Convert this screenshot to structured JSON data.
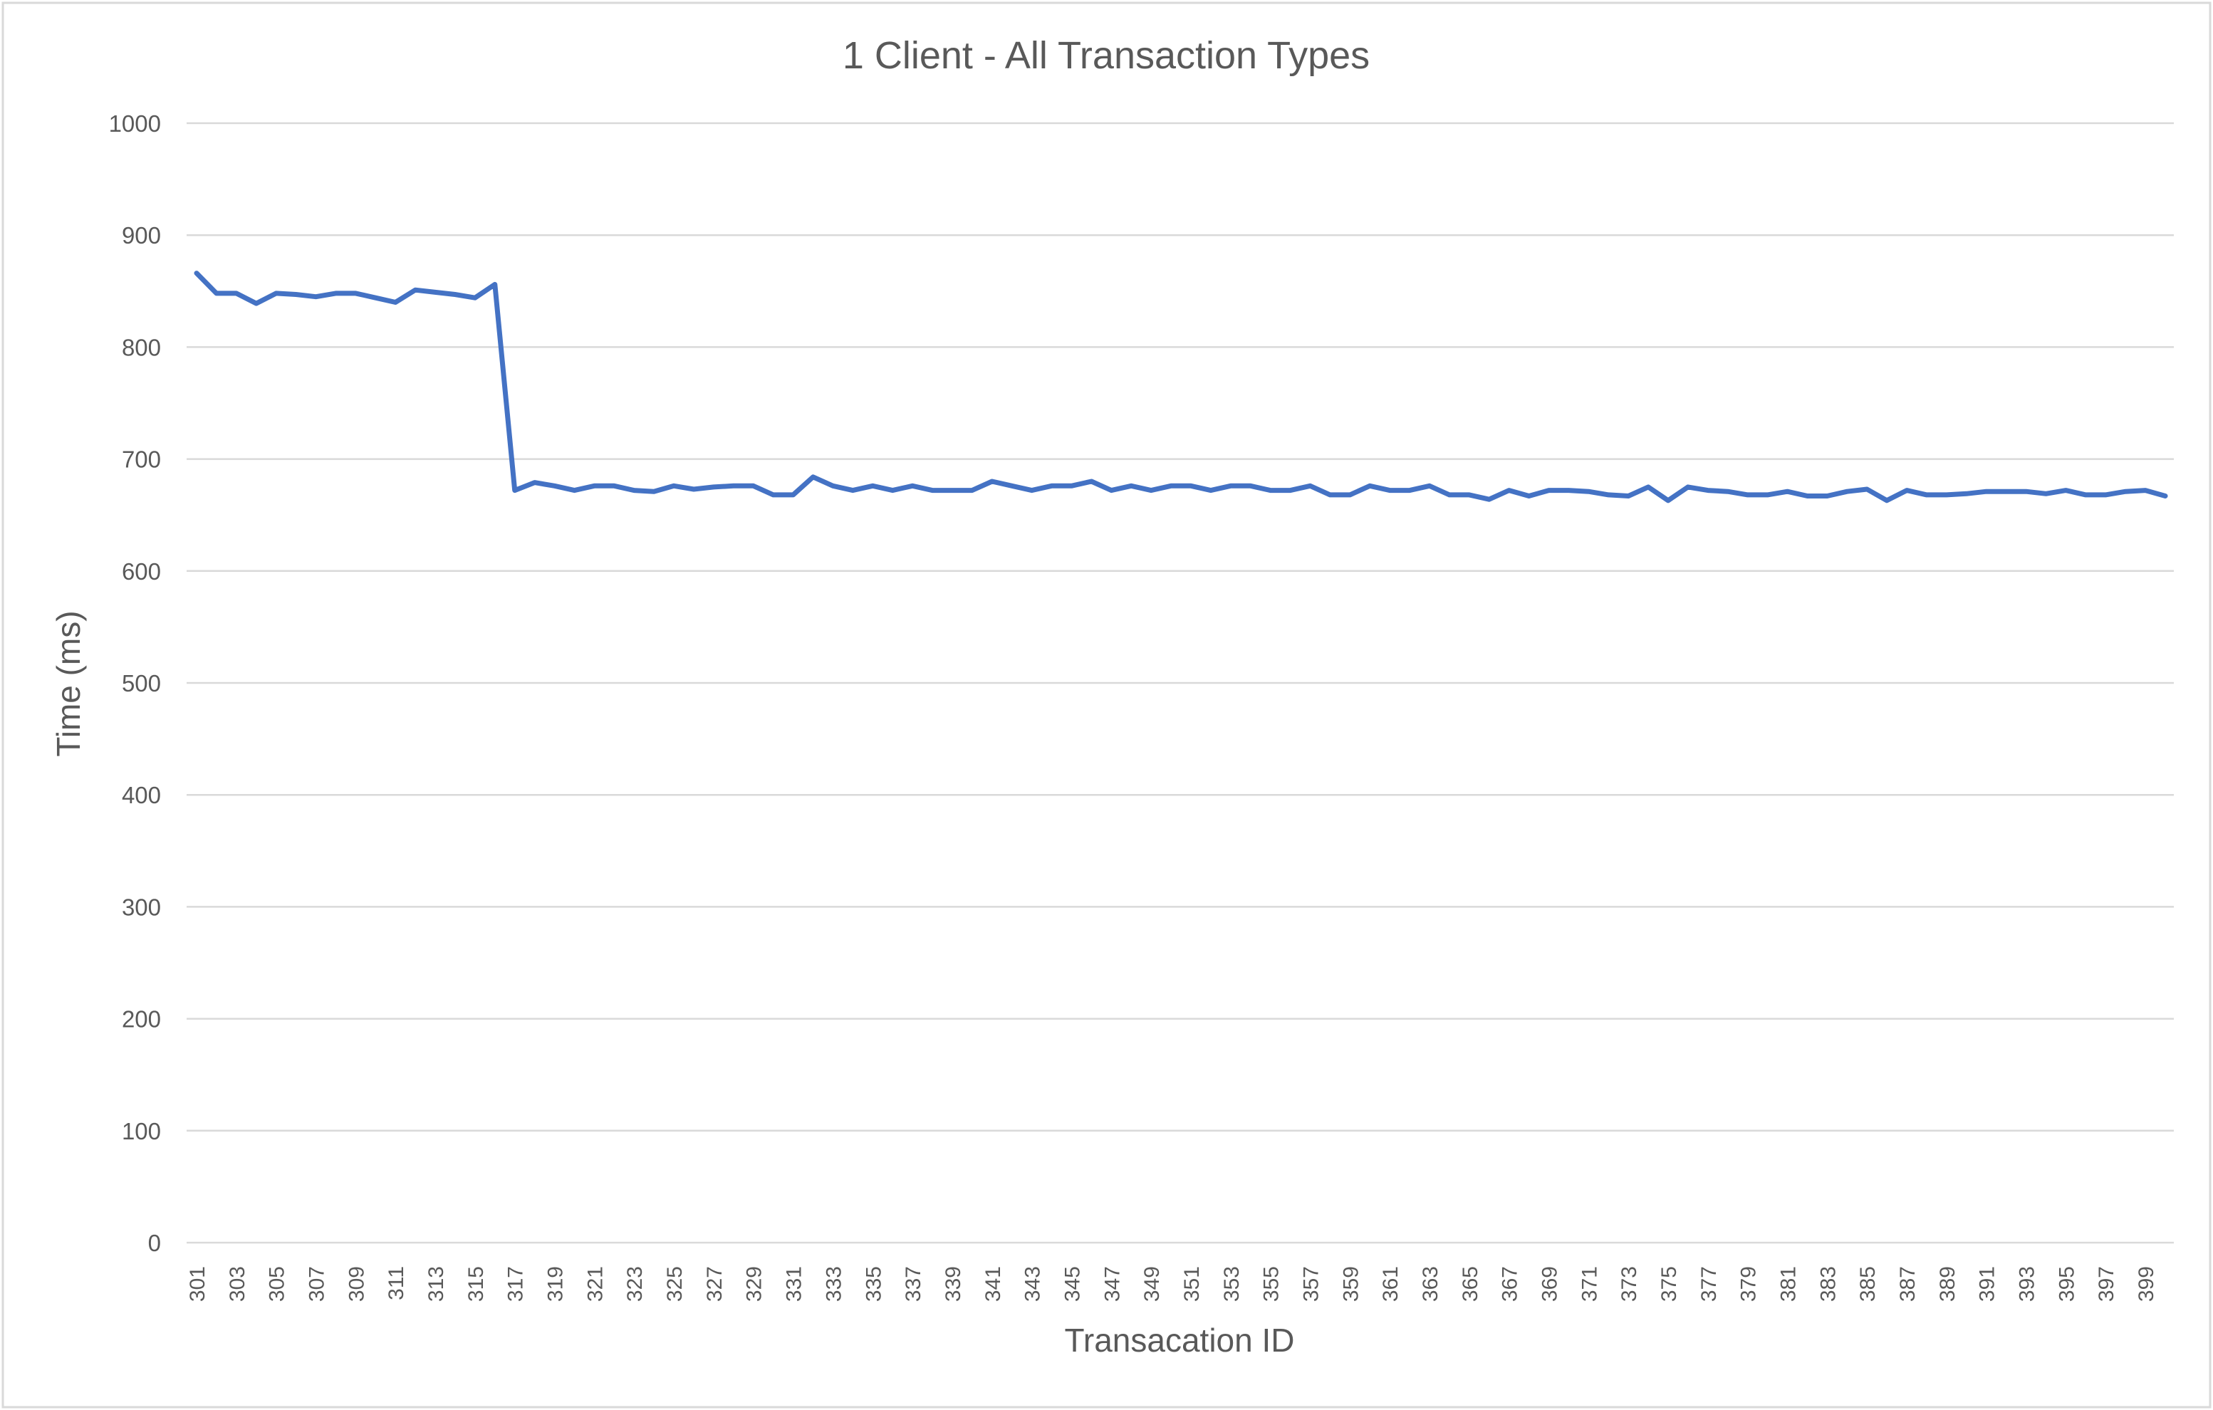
{
  "chart_data": {
    "type": "line",
    "title": "1 Client - All Transaction Types",
    "xlabel": "Transacation ID",
    "ylabel": "Time (ms)",
    "ylim": [
      0,
      1000
    ],
    "yticks": [
      0,
      100,
      200,
      300,
      400,
      500,
      600,
      700,
      800,
      900,
      1000
    ],
    "grid": true,
    "legend": "none",
    "x_tick_labels": [
      301,
      303,
      305,
      307,
      309,
      311,
      313,
      315,
      317,
      319,
      321,
      323,
      325,
      327,
      329,
      331,
      333,
      335,
      337,
      339,
      341,
      343,
      345,
      347,
      349,
      351,
      353,
      355,
      357,
      359,
      361,
      363,
      365,
      367,
      369,
      371,
      373,
      375,
      377,
      379,
      381,
      383,
      385,
      387,
      389,
      391,
      393,
      395,
      397,
      399
    ],
    "series": [
      {
        "color": "#4472C4",
        "x": [
          301,
          302,
          303,
          304,
          305,
          306,
          307,
          308,
          309,
          310,
          311,
          312,
          313,
          314,
          315,
          316,
          317,
          318,
          319,
          320,
          321,
          322,
          323,
          324,
          325,
          326,
          327,
          328,
          329,
          330,
          331,
          332,
          333,
          334,
          335,
          336,
          337,
          338,
          339,
          340,
          341,
          342,
          343,
          344,
          345,
          346,
          347,
          348,
          349,
          350,
          351,
          352,
          353,
          354,
          355,
          356,
          357,
          358,
          359,
          360,
          361,
          362,
          363,
          364,
          365,
          366,
          367,
          368,
          369,
          370,
          371,
          372,
          373,
          374,
          375,
          376,
          377,
          378,
          379,
          380,
          381,
          382,
          383,
          384,
          385,
          386,
          387,
          388,
          389,
          390,
          391,
          392,
          393,
          394,
          395,
          396,
          397,
          398,
          399,
          400
        ],
        "values": [
          866,
          848,
          848,
          839,
          848,
          847,
          845,
          848,
          848,
          844,
          840,
          851,
          849,
          847,
          844,
          856,
          672,
          679,
          676,
          672,
          676,
          676,
          672,
          671,
          676,
          673,
          675,
          676,
          676,
          668,
          668,
          684,
          676,
          672,
          676,
          672,
          676,
          672,
          672,
          672,
          680,
          676,
          672,
          676,
          676,
          680,
          672,
          676,
          672,
          676,
          676,
          672,
          676,
          676,
          672,
          672,
          676,
          668,
          668,
          676,
          672,
          672,
          676,
          668,
          668,
          664,
          672,
          667,
          672,
          672,
          671,
          668,
          667,
          675,
          663,
          675,
          672,
          671,
          668,
          668,
          671,
          667,
          667,
          671,
          673,
          663,
          672,
          668,
          668,
          669,
          671,
          671,
          671,
          669,
          672,
          668,
          668,
          671,
          672,
          667
        ]
      }
    ]
  }
}
